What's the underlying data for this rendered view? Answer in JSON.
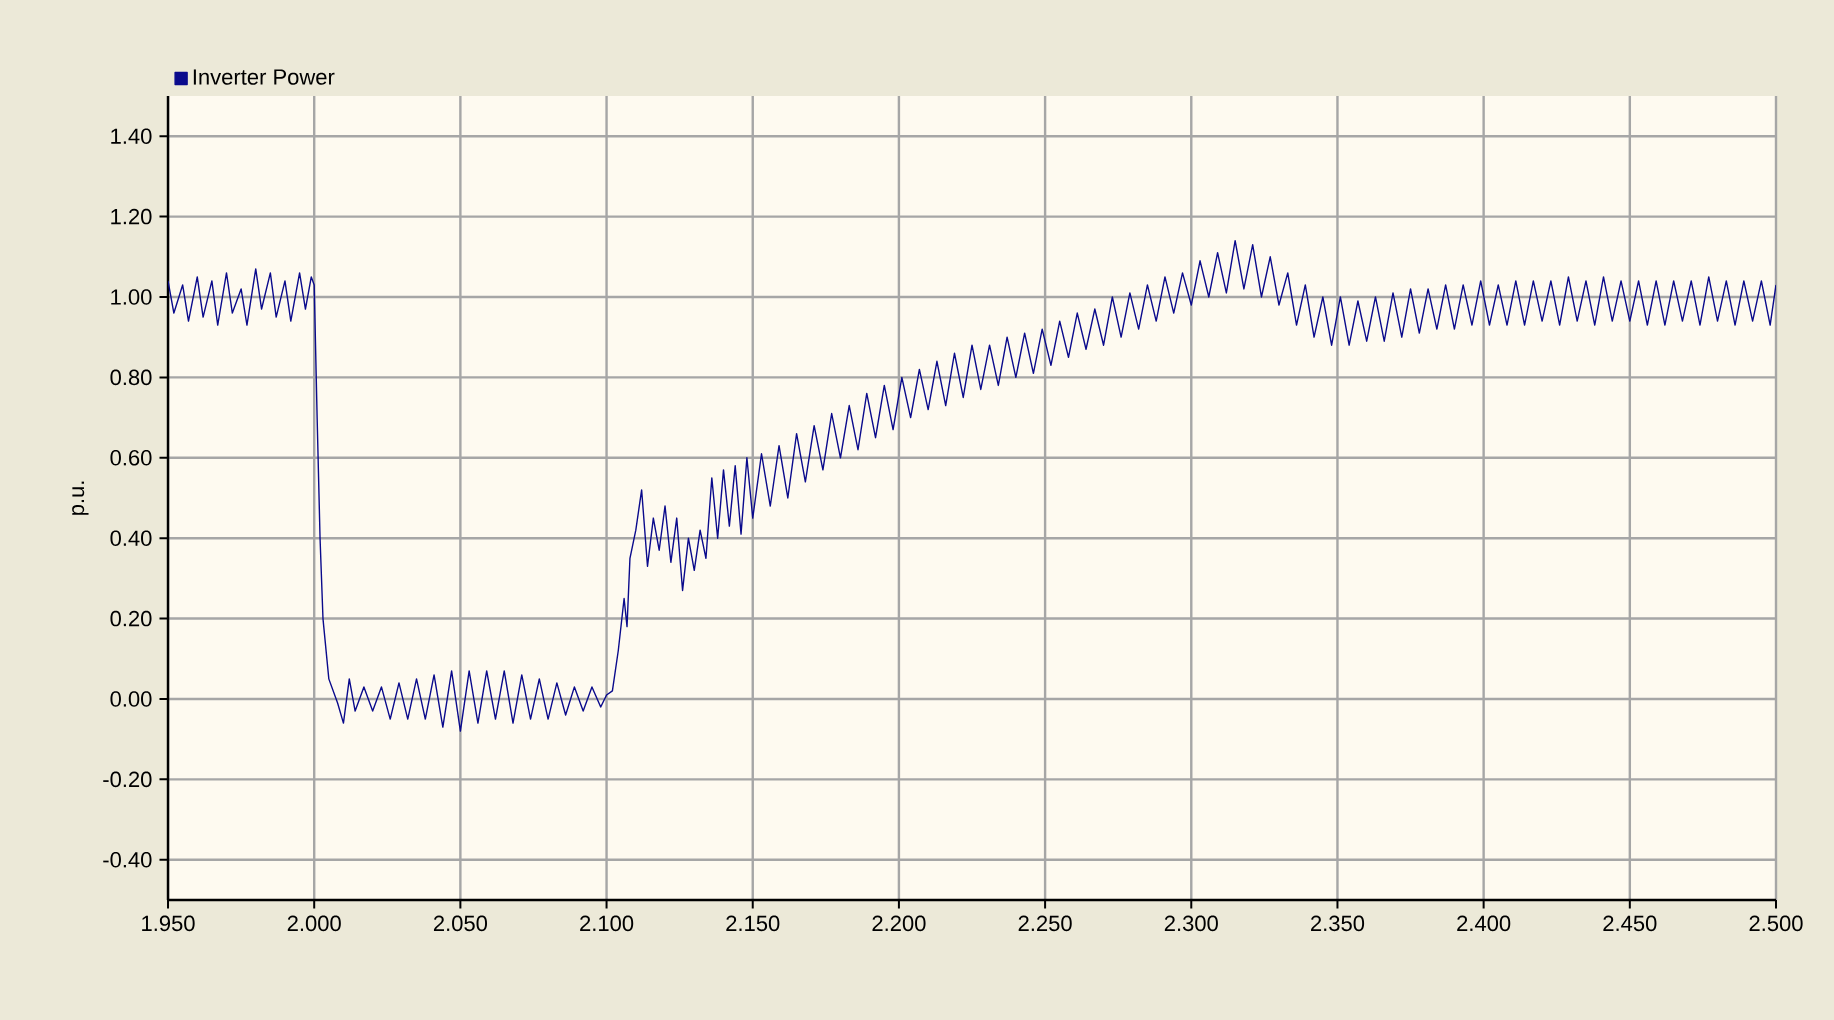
{
  "chart_data": {
    "type": "line",
    "ylabel": "p.u.",
    "xlim": [
      1.95,
      2.5
    ],
    "ylim": [
      -0.5,
      1.5
    ],
    "xticks": [
      {
        "value": 1.95,
        "label": "1.950"
      },
      {
        "value": 2.0,
        "label": "2.000"
      },
      {
        "value": 2.05,
        "label": "2.050"
      },
      {
        "value": 2.1,
        "label": "2.100"
      },
      {
        "value": 2.15,
        "label": "2.150"
      },
      {
        "value": 2.2,
        "label": "2.200"
      },
      {
        "value": 2.25,
        "label": "2.250"
      },
      {
        "value": 2.3,
        "label": "2.300"
      },
      {
        "value": 2.35,
        "label": "2.350"
      },
      {
        "value": 2.4,
        "label": "2.400"
      },
      {
        "value": 2.45,
        "label": "2.450"
      },
      {
        "value": 2.5,
        "label": "2.500"
      }
    ],
    "yticks": [
      {
        "value": -0.4,
        "label": "-0.40"
      },
      {
        "value": -0.2,
        "label": "-0.20"
      },
      {
        "value": 0,
        "label": "0.00"
      },
      {
        "value": 0.2,
        "label": "0.20"
      },
      {
        "value": 0.4,
        "label": "0.40"
      },
      {
        "value": 0.6,
        "label": "0.60"
      },
      {
        "value": 0.8,
        "label": "0.80"
      },
      {
        "value": 1.0,
        "label": "1.00"
      },
      {
        "value": 1.2,
        "label": "1.20"
      },
      {
        "value": 1.4,
        "label": "1.40"
      }
    ],
    "grid": true,
    "legend": "top left",
    "marker": "none",
    "line_style": "solid",
    "series": [
      {
        "name": "Inverter Power",
        "color": "#0a0a8c",
        "x": [
          1.95,
          1.952,
          1.955,
          1.957,
          1.96,
          1.962,
          1.965,
          1.967,
          1.97,
          1.972,
          1.975,
          1.977,
          1.98,
          1.982,
          1.985,
          1.987,
          1.99,
          1.992,
          1.995,
          1.997,
          1.999,
          2.0,
          2.001,
          2.002,
          2.003,
          2.005,
          2.008,
          2.01,
          2.012,
          2.014,
          2.017,
          2.02,
          2.023,
          2.026,
          2.029,
          2.032,
          2.035,
          2.038,
          2.041,
          2.044,
          2.047,
          2.05,
          2.053,
          2.056,
          2.059,
          2.062,
          2.065,
          2.068,
          2.071,
          2.074,
          2.077,
          2.08,
          2.083,
          2.086,
          2.089,
          2.092,
          2.095,
          2.098,
          2.1,
          2.102,
          2.104,
          2.106,
          2.107,
          2.108,
          2.11,
          2.112,
          2.114,
          2.116,
          2.118,
          2.12,
          2.122,
          2.124,
          2.126,
          2.128,
          2.13,
          2.132,
          2.134,
          2.136,
          2.138,
          2.14,
          2.142,
          2.144,
          2.146,
          2.148,
          2.15,
          2.153,
          2.156,
          2.159,
          2.162,
          2.165,
          2.168,
          2.171,
          2.174,
          2.177,
          2.18,
          2.183,
          2.186,
          2.189,
          2.192,
          2.195,
          2.198,
          2.201,
          2.204,
          2.207,
          2.21,
          2.213,
          2.216,
          2.219,
          2.222,
          2.225,
          2.228,
          2.231,
          2.234,
          2.237,
          2.24,
          2.243,
          2.246,
          2.249,
          2.252,
          2.255,
          2.258,
          2.261,
          2.264,
          2.267,
          2.27,
          2.273,
          2.276,
          2.279,
          2.282,
          2.285,
          2.288,
          2.291,
          2.294,
          2.297,
          2.3,
          2.303,
          2.306,
          2.309,
          2.312,
          2.315,
          2.318,
          2.321,
          2.324,
          2.327,
          2.33,
          2.333,
          2.336,
          2.339,
          2.342,
          2.345,
          2.348,
          2.351,
          2.354,
          2.357,
          2.36,
          2.363,
          2.366,
          2.369,
          2.372,
          2.375,
          2.378,
          2.381,
          2.384,
          2.387,
          2.39,
          2.393,
          2.396,
          2.399,
          2.402,
          2.405,
          2.408,
          2.411,
          2.414,
          2.417,
          2.42,
          2.423,
          2.426,
          2.429,
          2.432,
          2.435,
          2.438,
          2.441,
          2.444,
          2.447,
          2.45,
          2.453,
          2.456,
          2.459,
          2.462,
          2.465,
          2.468,
          2.471,
          2.474,
          2.477,
          2.48,
          2.483,
          2.486,
          2.489,
          2.492,
          2.495,
          2.498,
          2.5
        ],
        "values": [
          1.04,
          0.96,
          1.03,
          0.94,
          1.05,
          0.95,
          1.04,
          0.93,
          1.06,
          0.96,
          1.02,
          0.93,
          1.07,
          0.97,
          1.06,
          0.95,
          1.04,
          0.94,
          1.06,
          0.97,
          1.05,
          1.03,
          0.7,
          0.4,
          0.2,
          0.05,
          -0.01,
          -0.06,
          0.05,
          -0.03,
          0.03,
          -0.03,
          0.03,
          -0.05,
          0.04,
          -0.05,
          0.05,
          -0.05,
          0.06,
          -0.07,
          0.07,
          -0.08,
          0.07,
          -0.06,
          0.07,
          -0.05,
          0.07,
          -0.06,
          0.06,
          -0.05,
          0.05,
          -0.05,
          0.04,
          -0.04,
          0.03,
          -0.03,
          0.03,
          -0.02,
          0.01,
          0.02,
          0.12,
          0.25,
          0.18,
          0.35,
          0.42,
          0.52,
          0.33,
          0.45,
          0.37,
          0.48,
          0.34,
          0.45,
          0.27,
          0.4,
          0.32,
          0.42,
          0.35,
          0.55,
          0.4,
          0.57,
          0.43,
          0.58,
          0.41,
          0.6,
          0.45,
          0.61,
          0.48,
          0.63,
          0.5,
          0.66,
          0.54,
          0.68,
          0.57,
          0.71,
          0.6,
          0.73,
          0.62,
          0.76,
          0.65,
          0.78,
          0.67,
          0.8,
          0.7,
          0.82,
          0.72,
          0.84,
          0.73,
          0.86,
          0.75,
          0.88,
          0.77,
          0.88,
          0.78,
          0.9,
          0.8,
          0.91,
          0.81,
          0.92,
          0.83,
          0.94,
          0.85,
          0.96,
          0.87,
          0.97,
          0.88,
          1.0,
          0.9,
          1.01,
          0.92,
          1.03,
          0.94,
          1.05,
          0.96,
          1.06,
          0.98,
          1.09,
          1.0,
          1.11,
          1.01,
          1.14,
          1.02,
          1.13,
          1.0,
          1.1,
          0.98,
          1.06,
          0.93,
          1.03,
          0.9,
          1.0,
          0.88,
          1.0,
          0.88,
          0.99,
          0.89,
          1.0,
          0.89,
          1.01,
          0.9,
          1.02,
          0.91,
          1.02,
          0.92,
          1.03,
          0.92,
          1.03,
          0.93,
          1.04,
          0.93,
          1.03,
          0.93,
          1.04,
          0.93,
          1.04,
          0.94,
          1.04,
          0.93,
          1.05,
          0.94,
          1.04,
          0.93,
          1.05,
          0.94,
          1.04,
          0.94,
          1.04,
          0.93,
          1.04,
          0.93,
          1.04,
          0.94,
          1.04,
          0.93,
          1.05,
          0.94,
          1.04,
          0.93,
          1.04,
          0.94,
          1.04,
          0.93,
          1.03
        ]
      }
    ]
  }
}
